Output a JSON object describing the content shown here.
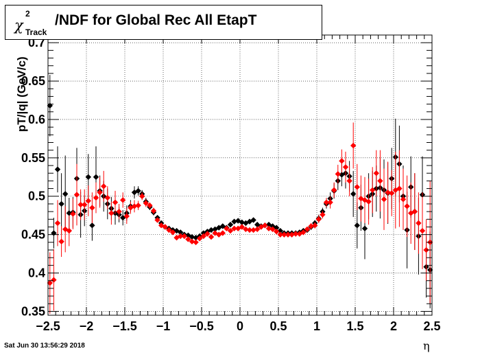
{
  "chart_data": {
    "type": "scatter",
    "title": {
      "chi": "χ",
      "superscript": "2",
      "subscript": "Track",
      "rest": "/NDF for Global Rec All EtapT"
    },
    "xlabel": "η",
    "ylabel": "pT/|q| (GeV/c)",
    "xlim": [
      -2.5,
      2.5
    ],
    "ylim": [
      0.345,
      0.71
    ],
    "xticks": [
      -2.5,
      -2,
      -1.5,
      -1,
      -0.5,
      0,
      0.5,
      1,
      1.5,
      2,
      2.5
    ],
    "xtick_labels": [
      "−2.5",
      "−2",
      "−1.5",
      "−1",
      "−0.5",
      "0",
      "0.5",
      "1",
      "1.5",
      "2",
      "2.5"
    ],
    "yticks": [
      0.35,
      0.4,
      0.45,
      0.5,
      0.55,
      0.6,
      0.65,
      0.7
    ],
    "ytick_labels": [
      "0.35",
      "0.4",
      "0.45",
      "0.5",
      "0.55",
      "0.6",
      "0.65",
      "0.7"
    ],
    "grid": true,
    "series": [
      {
        "color": "#000000",
        "x": [
          -2.475,
          -2.425,
          -2.375,
          -2.325,
          -2.275,
          -2.225,
          -2.175,
          -2.125,
          -2.075,
          -2.025,
          -1.975,
          -1.925,
          -1.875,
          -1.825,
          -1.775,
          -1.725,
          -1.675,
          -1.625,
          -1.575,
          -1.525,
          -1.475,
          -1.425,
          -1.375,
          -1.325,
          -1.275,
          -1.225,
          -1.175,
          -1.125,
          -1.075,
          -1.025,
          -0.975,
          -0.925,
          -0.875,
          -0.825,
          -0.775,
          -0.725,
          -0.675,
          -0.625,
          -0.575,
          -0.525,
          -0.475,
          -0.425,
          -0.375,
          -0.325,
          -0.275,
          -0.225,
          -0.175,
          -0.125,
          -0.075,
          -0.025,
          0.025,
          0.075,
          0.125,
          0.175,
          0.225,
          0.275,
          0.325,
          0.375,
          0.425,
          0.475,
          0.525,
          0.575,
          0.625,
          0.675,
          0.725,
          0.775,
          0.825,
          0.875,
          0.925,
          0.975,
          1.025,
          1.075,
          1.125,
          1.175,
          1.225,
          1.275,
          1.325,
          1.375,
          1.425,
          1.475,
          1.525,
          1.575,
          1.625,
          1.675,
          1.725,
          1.775,
          1.825,
          1.875,
          1.925,
          1.975,
          2.025,
          2.075,
          2.125,
          2.175,
          2.225,
          2.275,
          2.325,
          2.375,
          2.425,
          2.475
        ],
        "y": [
          0.618,
          0.452,
          0.535,
          0.49,
          0.503,
          0.478,
          0.479,
          0.523,
          0.476,
          0.481,
          0.525,
          0.462,
          0.525,
          0.507,
          0.5,
          0.49,
          0.484,
          0.478,
          0.476,
          0.472,
          0.478,
          0.487,
          0.505,
          0.507,
          0.503,
          0.493,
          0.486,
          0.479,
          0.472,
          0.465,
          0.46,
          0.458,
          0.456,
          0.455,
          0.453,
          0.45,
          0.449,
          0.447,
          0.446,
          0.448,
          0.452,
          0.454,
          0.456,
          0.457,
          0.459,
          0.461,
          0.459,
          0.463,
          0.467,
          0.468,
          0.466,
          0.465,
          0.467,
          0.469,
          0.463,
          0.461,
          0.462,
          0.463,
          0.461,
          0.459,
          0.455,
          0.452,
          0.452,
          0.452,
          0.452,
          0.453,
          0.455,
          0.456,
          0.46,
          0.465,
          0.471,
          0.48,
          0.49,
          0.497,
          0.507,
          0.52,
          0.528,
          0.53,
          0.526,
          0.503,
          0.462,
          0.485,
          0.458,
          0.5,
          0.503,
          0.51,
          0.511,
          0.508,
          0.504,
          0.523,
          0.551,
          0.542,
          0.5,
          0.456,
          0.512,
          0.48,
          0.448,
          0.502,
          0.408,
          0.404
        ],
        "err": [
          0.04,
          0.02,
          0.03,
          0.04,
          0.05,
          0.02,
          0.02,
          0.04,
          0.03,
          0.02,
          0.03,
          0.02,
          0.04,
          0.02,
          0.02,
          0.02,
          0.015,
          0.015,
          0.01,
          0.01,
          0.01,
          0.008,
          0.008,
          0.006,
          0.005,
          0.005,
          0.004,
          0.004,
          0.003,
          0.003,
          0.003,
          0.003,
          0.003,
          0.003,
          0.003,
          0.003,
          0.003,
          0.003,
          0.003,
          0.003,
          0.003,
          0.003,
          0.003,
          0.003,
          0.003,
          0.003,
          0.003,
          0.003,
          0.003,
          0.003,
          0.003,
          0.003,
          0.003,
          0.003,
          0.003,
          0.003,
          0.003,
          0.003,
          0.003,
          0.003,
          0.003,
          0.003,
          0.003,
          0.003,
          0.003,
          0.003,
          0.003,
          0.003,
          0.004,
          0.004,
          0.005,
          0.005,
          0.006,
          0.008,
          0.01,
          0.012,
          0.015,
          0.02,
          0.02,
          0.03,
          0.03,
          0.03,
          0.04,
          0.03,
          0.03,
          0.03,
          0.04,
          0.04,
          0.04,
          0.04,
          0.05,
          0.05,
          0.04,
          0.05,
          0.04,
          0.05,
          0.05,
          0.05,
          0.04,
          0.05
        ]
      },
      {
        "color": "#ff0000",
        "x": [
          -2.475,
          -2.425,
          -2.375,
          -2.325,
          -2.275,
          -2.225,
          -2.175,
          -2.125,
          -2.075,
          -2.025,
          -1.975,
          -1.925,
          -1.875,
          -1.825,
          -1.775,
          -1.725,
          -1.675,
          -1.625,
          -1.575,
          -1.525,
          -1.475,
          -1.425,
          -1.375,
          -1.325,
          -1.275,
          -1.225,
          -1.175,
          -1.125,
          -1.075,
          -1.025,
          -0.975,
          -0.925,
          -0.875,
          -0.825,
          -0.775,
          -0.725,
          -0.675,
          -0.625,
          -0.575,
          -0.525,
          -0.475,
          -0.425,
          -0.375,
          -0.325,
          -0.275,
          -0.225,
          -0.175,
          -0.125,
          -0.075,
          -0.025,
          0.025,
          0.075,
          0.125,
          0.175,
          0.225,
          0.275,
          0.325,
          0.375,
          0.425,
          0.475,
          0.525,
          0.575,
          0.625,
          0.675,
          0.725,
          0.775,
          0.825,
          0.875,
          0.925,
          0.975,
          1.025,
          1.075,
          1.125,
          1.175,
          1.225,
          1.275,
          1.325,
          1.375,
          1.425,
          1.475,
          1.525,
          1.575,
          1.625,
          1.675,
          1.725,
          1.775,
          1.825,
          1.875,
          1.925,
          1.975,
          2.025,
          2.075,
          2.125,
          2.175,
          2.225,
          2.275,
          2.325,
          2.375,
          2.425,
          2.475
        ],
        "y": [
          0.387,
          0.391,
          0.465,
          0.441,
          0.457,
          0.455,
          0.477,
          0.502,
          0.489,
          0.489,
          0.494,
          0.485,
          0.498,
          0.505,
          0.513,
          0.498,
          0.478,
          0.492,
          0.48,
          0.495,
          0.474,
          0.485,
          0.487,
          0.488,
          0.5,
          0.491,
          0.488,
          0.481,
          0.469,
          0.462,
          0.46,
          0.456,
          0.453,
          0.446,
          0.448,
          0.448,
          0.444,
          0.441,
          0.44,
          0.445,
          0.448,
          0.451,
          0.447,
          0.452,
          0.45,
          0.452,
          0.458,
          0.455,
          0.458,
          0.458,
          0.46,
          0.457,
          0.456,
          0.456,
          0.457,
          0.46,
          0.462,
          0.458,
          0.457,
          0.454,
          0.45,
          0.45,
          0.45,
          0.45,
          0.451,
          0.451,
          0.453,
          0.457,
          0.461,
          0.462,
          0.47,
          0.476,
          0.492,
          0.492,
          0.508,
          0.529,
          0.546,
          0.538,
          0.52,
          0.566,
          0.512,
          0.497,
          0.495,
          0.493,
          0.508,
          0.53,
          0.52,
          0.496,
          0.505,
          0.504,
          0.508,
          0.51,
          0.496,
          0.487,
          0.478,
          0.48,
          0.465,
          0.455,
          0.43,
          0.44
        ],
        "err": [
          0.04,
          0.04,
          0.03,
          0.02,
          0.03,
          0.02,
          0.02,
          0.04,
          0.02,
          0.02,
          0.02,
          0.02,
          0.02,
          0.02,
          0.02,
          0.015,
          0.015,
          0.015,
          0.01,
          0.01,
          0.01,
          0.008,
          0.008,
          0.006,
          0.005,
          0.005,
          0.004,
          0.004,
          0.003,
          0.003,
          0.003,
          0.003,
          0.003,
          0.003,
          0.003,
          0.003,
          0.003,
          0.003,
          0.003,
          0.003,
          0.003,
          0.003,
          0.003,
          0.003,
          0.003,
          0.003,
          0.003,
          0.003,
          0.003,
          0.003,
          0.003,
          0.003,
          0.003,
          0.003,
          0.003,
          0.003,
          0.003,
          0.003,
          0.003,
          0.003,
          0.003,
          0.003,
          0.003,
          0.003,
          0.003,
          0.003,
          0.003,
          0.003,
          0.004,
          0.004,
          0.005,
          0.005,
          0.006,
          0.008,
          0.01,
          0.012,
          0.015,
          0.02,
          0.02,
          0.03,
          0.03,
          0.03,
          0.03,
          0.03,
          0.03,
          0.03,
          0.04,
          0.04,
          0.04,
          0.03,
          0.05,
          0.05,
          0.04,
          0.04,
          0.04,
          0.05,
          0.04,
          0.05,
          0.04,
          0.08
        ]
      }
    ]
  },
  "footer": {
    "timestamp": "Sat Jun 30 13:56:29 2018"
  }
}
